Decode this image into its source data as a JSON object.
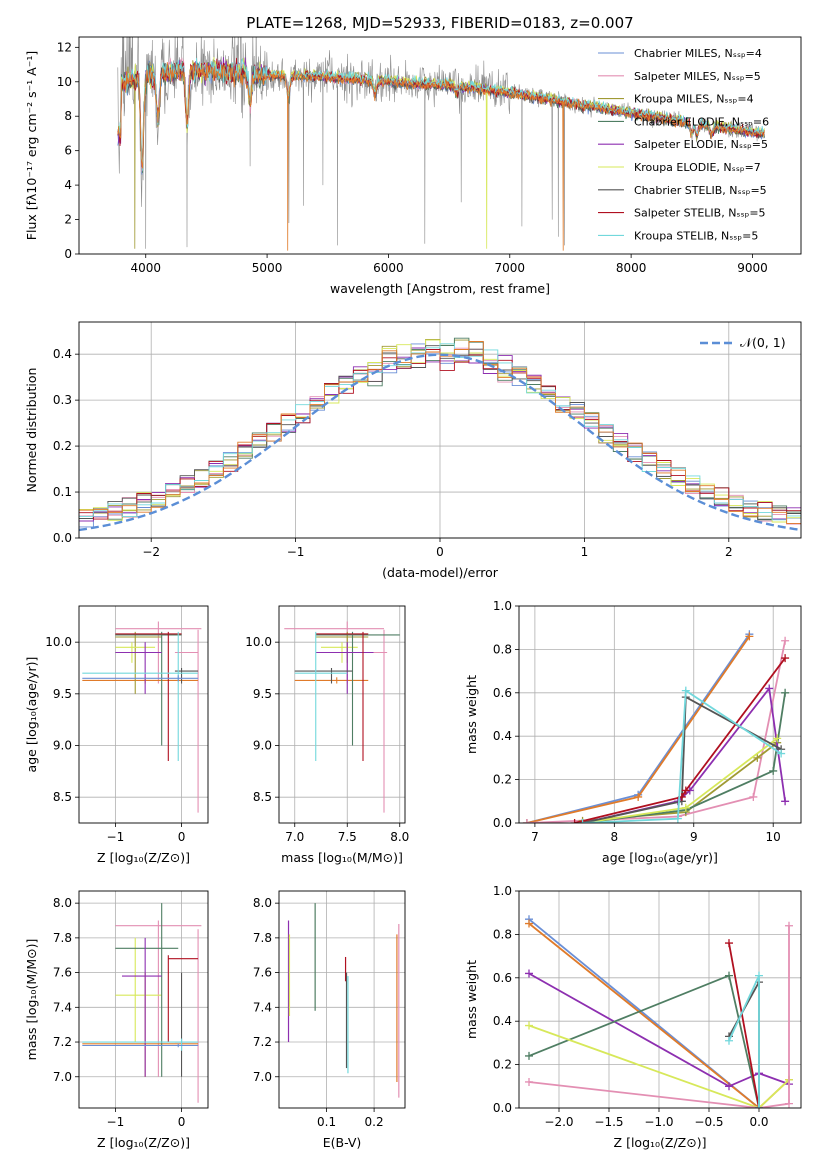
{
  "colors": {
    "c_miles": "#6a8fd6",
    "s_miles": "#e38fb3",
    "k_miles": "#a09a34",
    "c_elodie": "#4f7e63",
    "s_elodie": "#8d2fb0",
    "k_elodie": "#d7e85a",
    "c_stelib": "#555555",
    "s_stelib": "#b01020",
    "k_stelib": "#72d8dc",
    "orange": "#e07b2a",
    "data_gray": "#8c8c8c",
    "normal_line": "#5b8ed6"
  },
  "chart_data": [
    {
      "id": "spectrum",
      "type": "line",
      "title": "PLATE=1268, MJD=52933, FIBERID=0183, z=0.007",
      "xlabel": "wavelength [Angstrom, rest frame]",
      "ylabel": "Flux [fλ10⁻¹⁷ erg cm⁻² s⁻¹ A⁻¹]",
      "xlim": [
        3450,
        9400
      ],
      "ylim": [
        0,
        12.6
      ],
      "xticks": [
        4000,
        5000,
        6000,
        7000,
        8000,
        9000
      ],
      "yticks": [
        0,
        2,
        4,
        6,
        8,
        10,
        12
      ],
      "grid": false,
      "legend_position": "top-right",
      "legend": [
        {
          "label": "Chabrier MILES, Nₛₛₚ=4",
          "color_key": "c_miles"
        },
        {
          "label": "Salpeter MILES, Nₛₛₚ=5",
          "color_key": "s_miles"
        },
        {
          "label": "Kroupa MILES, Nₛₛₚ=4",
          "color_key": "k_miles"
        },
        {
          "label": "Chabrier ELODIE, Nₛₛₚ=6",
          "color_key": "c_elodie"
        },
        {
          "label": "Salpeter ELODIE, Nₛₛₚ=5",
          "color_key": "s_elodie"
        },
        {
          "label": "Kroupa ELODIE, Nₛₛₚ=7",
          "color_key": "k_elodie"
        },
        {
          "label": "Chabrier STELIB, Nₛₛₚ=5",
          "color_key": "c_stelib"
        },
        {
          "label": "Salpeter STELIB, Nₛₛₚ=5",
          "color_key": "s_stelib"
        },
        {
          "label": "Kroupa STELIB, Nₛₛₚ=5",
          "color_key": "k_stelib"
        }
      ],
      "continuum": [
        [
          3800,
          10.0
        ],
        [
          4000,
          10.3
        ],
        [
          4200,
          10.6
        ],
        [
          4500,
          10.7
        ],
        [
          5000,
          10.4
        ],
        [
          5500,
          10.3
        ],
        [
          6000,
          10.0
        ],
        [
          6500,
          9.8
        ],
        [
          7000,
          9.4
        ],
        [
          7500,
          8.8
        ],
        [
          8000,
          8.2
        ],
        [
          8500,
          7.6
        ],
        [
          9000,
          7.1
        ],
        [
          9100,
          7.0
        ]
      ],
      "absorption_dips": [
        [
          3970,
          4.5
        ],
        [
          4100,
          7.5
        ],
        [
          4340,
          7.0
        ],
        [
          4860,
          8.5
        ],
        [
          5175,
          9.0
        ],
        [
          5890,
          9.2
        ],
        [
          6563,
          9.3
        ],
        [
          7600,
          8.5
        ],
        [
          8500,
          7.0
        ],
        [
          8542,
          6.8
        ],
        [
          8662,
          6.9
        ]
      ],
      "model_glitches": [
        {
          "x": 5170,
          "y": 0.2,
          "color_key": "orange"
        },
        {
          "x": 7440,
          "y": 0.2,
          "color_key": "orange"
        },
        {
          "x": 6810,
          "y": 0.3,
          "color_key": "k_elodie"
        },
        {
          "x": 3910,
          "y": 0.3,
          "color_key": "k_miles"
        }
      ],
      "data_spikes": [
        [
          3770,
          1.3
        ],
        [
          4000,
          0.3
        ],
        [
          4340,
          0.4
        ],
        [
          4860,
          5.1
        ],
        [
          5180,
          1.8
        ],
        [
          5300,
          2.8
        ],
        [
          5460,
          4.0
        ],
        [
          5580,
          0.5
        ],
        [
          6300,
          0.6
        ],
        [
          6600,
          3.0
        ],
        [
          7100,
          1.6
        ],
        [
          7350,
          2.0
        ],
        [
          7400,
          1.0
        ],
        [
          7450,
          0.5
        ]
      ]
    },
    {
      "id": "residuals",
      "type": "histogram",
      "xlabel": "(data-model)/error",
      "ylabel": "Normed distribution",
      "xlim": [
        -2.5,
        2.5
      ],
      "ylim": [
        0,
        0.47
      ],
      "xticks": [
        -2,
        -1,
        0,
        1,
        2
      ],
      "yticks": [
        0.0,
        0.1,
        0.2,
        0.3,
        0.4
      ],
      "grid": true,
      "legend_position": "top-right",
      "normal_curve": {
        "label": "𝒩(0, 1)",
        "mean": 0,
        "sigma": 1
      },
      "bin_width": 0.1
    },
    {
      "id": "age_vs_Z",
      "type": "error-cross",
      "xlabel": "Z [log₁₀(Z/Z⊙)]",
      "ylabel": "age  [log₁₀(age/yr)]",
      "xlim": [
        -1.55,
        0.4
      ],
      "ylim": [
        8.25,
        10.35
      ],
      "xticks": [
        -1,
        0
      ],
      "yticks": [
        8.5,
        9.0,
        9.5,
        10.0
      ],
      "grid": true,
      "crosses": [
        {
          "x": -0.35,
          "y": 10.13,
          "x0": -1.0,
          "x1": 0.3,
          "y0": 9.6,
          "y1": 10.2,
          "color_key": "s_miles"
        },
        {
          "x": 0.25,
          "y": 9.9,
          "x0": -0.1,
          "x1": 0.25,
          "y0": 8.35,
          "y1": 10.12,
          "color_key": "s_miles"
        },
        {
          "x": -0.55,
          "y": 9.63,
          "x0": -1.5,
          "x1": 0.25,
          "y0": 9.6,
          "y1": 9.66,
          "color_key": "orange"
        },
        {
          "x": -0.7,
          "y": 10.05,
          "x0": -1.0,
          "x1": -0.3,
          "y0": 9.5,
          "y1": 10.1,
          "color_key": "k_miles"
        },
        {
          "x": -0.75,
          "y": 9.95,
          "x0": -1.0,
          "x1": -0.4,
          "y0": 9.8,
          "y1": 10.0,
          "color_key": "k_elodie"
        },
        {
          "x": -0.3,
          "y": 10.07,
          "x0": -1.0,
          "x1": 0.0,
          "y0": 9.0,
          "y1": 10.1,
          "color_key": "c_elodie"
        },
        {
          "x": -0.55,
          "y": 9.9,
          "x0": -1.0,
          "x1": -0.3,
          "y0": 9.5,
          "y1": 10.0,
          "color_key": "s_elodie"
        },
        {
          "x": -0.2,
          "y": 10.08,
          "x0": -1.0,
          "x1": 0.0,
          "y0": 8.85,
          "y1": 10.1,
          "color_key": "s_stelib"
        },
        {
          "x": 0.0,
          "y": 9.72,
          "x0": -0.1,
          "x1": 0.25,
          "y0": 9.6,
          "y1": 9.75,
          "color_key": "c_stelib"
        },
        {
          "x": -0.05,
          "y": 9.7,
          "x0": -1.5,
          "x1": 0.25,
          "y0": 8.85,
          "y1": 10.1,
          "color_key": "k_stelib"
        },
        {
          "x": -0.05,
          "y": 9.65,
          "x0": -1.5,
          "x1": 0.25,
          "y0": 9.62,
          "y1": 9.68,
          "color_key": "c_miles"
        }
      ]
    },
    {
      "id": "age_vs_mass",
      "type": "error-cross",
      "xlabel": "mass [log₁₀(M/M⊙)]",
      "ylabel": "",
      "xlim": [
        6.85,
        8.05
      ],
      "ylim": [
        8.25,
        10.35
      ],
      "xticks": [
        7.0,
        7.5,
        8.0
      ],
      "yticks": [
        8.5,
        9.0,
        9.5,
        10.0
      ],
      "grid": true,
      "crosses": [
        {
          "x": 7.5,
          "y": 10.13,
          "x0": 6.9,
          "x1": 7.85,
          "y0": 9.6,
          "y1": 10.2,
          "color_key": "s_miles"
        },
        {
          "x": 7.85,
          "y": 9.9,
          "x0": 7.65,
          "x1": 7.88,
          "y0": 8.35,
          "y1": 10.12,
          "color_key": "s_miles"
        },
        {
          "x": 7.4,
          "y": 9.63,
          "x0": 7.0,
          "x1": 7.7,
          "y0": 9.6,
          "y1": 9.66,
          "color_key": "orange"
        },
        {
          "x": 7.5,
          "y": 10.05,
          "x0": 7.2,
          "x1": 7.7,
          "y0": 9.8,
          "y1": 10.1,
          "color_key": "k_miles"
        },
        {
          "x": 7.45,
          "y": 9.95,
          "x0": 7.25,
          "x1": 7.6,
          "y0": 9.8,
          "y1": 10.0,
          "color_key": "k_elodie"
        },
        {
          "x": 7.55,
          "y": 10.07,
          "x0": 7.2,
          "x1": 8.0,
          "y0": 9.0,
          "y1": 10.1,
          "color_key": "c_elodie"
        },
        {
          "x": 7.5,
          "y": 9.9,
          "x0": 7.2,
          "x1": 7.75,
          "y0": 9.5,
          "y1": 10.0,
          "color_key": "s_elodie"
        },
        {
          "x": 7.65,
          "y": 10.08,
          "x0": 7.2,
          "x1": 7.7,
          "y0": 8.85,
          "y1": 10.1,
          "color_key": "s_stelib"
        },
        {
          "x": 7.35,
          "y": 9.72,
          "x0": 7.0,
          "x1": 7.55,
          "y0": 9.6,
          "y1": 9.75,
          "color_key": "c_stelib"
        },
        {
          "x": 7.2,
          "y": 9.7,
          "x0": 7.0,
          "x1": 7.5,
          "y0": 8.85,
          "y1": 10.1,
          "color_key": "k_stelib"
        }
      ]
    },
    {
      "id": "weight_vs_age",
      "type": "line",
      "xlabel": "age  [log₁₀(age/yr)]",
      "ylabel": "mass weight",
      "xlim": [
        6.8,
        10.35
      ],
      "ylim": [
        0,
        1.0
      ],
      "xticks": [
        7,
        8,
        9,
        10
      ],
      "yticks": [
        0.0,
        0.2,
        0.4,
        0.6,
        0.8,
        1.0
      ],
      "grid": true,
      "series": [
        {
          "color_key": "c_miles",
          "x": [
            6.9,
            8.3,
            9.7
          ],
          "y": [
            0.0,
            0.13,
            0.87
          ]
        },
        {
          "color_key": "orange",
          "x": [
            6.9,
            8.3,
            9.7
          ],
          "y": [
            0.0,
            0.12,
            0.86
          ]
        },
        {
          "color_key": "s_miles",
          "x": [
            6.9,
            8.8,
            9.75,
            10.15
          ],
          "y": [
            0.0,
            0.03,
            0.12,
            0.84
          ]
        },
        {
          "color_key": "k_miles",
          "x": [
            7.6,
            8.9,
            9.8,
            10.05
          ],
          "y": [
            0.01,
            0.05,
            0.3,
            0.37
          ]
        },
        {
          "color_key": "c_elodie",
          "x": [
            7.6,
            8.9,
            10.0,
            10.15
          ],
          "y": [
            0.0,
            0.06,
            0.24,
            0.6
          ]
        },
        {
          "color_key": "s_elodie",
          "x": [
            7.6,
            8.8,
            8.95,
            9.95,
            10.15
          ],
          "y": [
            0.0,
            0.1,
            0.15,
            0.62,
            0.1
          ]
        },
        {
          "color_key": "k_elodie",
          "x": [
            7.6,
            8.9,
            10.05
          ],
          "y": [
            0.0,
            0.07,
            0.39
          ]
        },
        {
          "color_key": "c_stelib",
          "x": [
            7.6,
            8.85,
            8.9,
            10.1
          ],
          "y": [
            0.0,
            0.1,
            0.58,
            0.34
          ]
        },
        {
          "color_key": "s_stelib",
          "x": [
            7.5,
            8.85,
            8.9,
            10.15
          ],
          "y": [
            0.0,
            0.12,
            0.15,
            0.76
          ]
        },
        {
          "color_key": "k_stelib",
          "x": [
            7.6,
            8.8,
            8.9,
            10.1
          ],
          "y": [
            0.0,
            0.02,
            0.61,
            0.32
          ]
        }
      ]
    },
    {
      "id": "mass_vs_Z",
      "type": "error-cross",
      "xlabel": "Z [log₁₀(Z/Z⊙)]",
      "ylabel": "mass [log₁₀(M/M⊙)]",
      "xlim": [
        -1.55,
        0.4
      ],
      "ylim": [
        6.82,
        8.07
      ],
      "xticks": [
        -1,
        0
      ],
      "yticks": [
        7.0,
        7.2,
        7.4,
        7.6,
        7.8,
        8.0
      ],
      "grid": true,
      "crosses": [
        {
          "x": -0.35,
          "y": 7.87,
          "x0": -1.0,
          "x1": 0.3,
          "y0": 7.0,
          "y1": 7.9,
          "color_key": "s_miles"
        },
        {
          "x": 0.25,
          "y": 7.2,
          "x0": -0.1,
          "x1": 0.25,
          "y0": 6.85,
          "y1": 7.85,
          "color_key": "s_miles"
        },
        {
          "x": -0.55,
          "y": 7.19,
          "x0": -1.5,
          "x1": 0.25,
          "y0": 7.0,
          "y1": 7.6,
          "color_key": "orange"
        },
        {
          "x": -0.7,
          "y": 7.47,
          "x0": -1.0,
          "x1": -0.3,
          "y0": 7.2,
          "y1": 7.8,
          "color_key": "k_elodie"
        },
        {
          "x": -0.3,
          "y": 7.74,
          "x0": -1.0,
          "x1": -0.05,
          "y0": 7.0,
          "y1": 8.0,
          "color_key": "c_elodie"
        },
        {
          "x": -0.55,
          "y": 7.58,
          "x0": -0.9,
          "x1": -0.3,
          "y0": 7.0,
          "y1": 7.8,
          "color_key": "s_elodie"
        },
        {
          "x": -0.2,
          "y": 7.68,
          "x0": -0.2,
          "x1": 0.25,
          "y0": 7.2,
          "y1": 7.7,
          "color_key": "s_stelib"
        },
        {
          "x": 0.0,
          "y": 7.18,
          "x0": -0.2,
          "x1": 0.25,
          "y0": 7.0,
          "y1": 7.6,
          "color_key": "c_stelib"
        },
        {
          "x": 0.0,
          "y": 7.2,
          "x0": -1.5,
          "x1": 0.25,
          "y0": 7.15,
          "y1": 7.22,
          "color_key": "k_stelib"
        },
        {
          "x": -0.05,
          "y": 7.18,
          "x0": -1.5,
          "x1": 0.25,
          "y0": 7.17,
          "y1": 7.19,
          "color_key": "c_miles"
        }
      ]
    },
    {
      "id": "mass_vs_ebv",
      "type": "error-bar",
      "xlabel": "E(B-V)",
      "ylabel": "",
      "xlim": [
        0.0,
        0.265
      ],
      "ylim": [
        6.82,
        8.07
      ],
      "xticks": [
        0.1,
        0.2
      ],
      "yticks": [
        7.0,
        7.2,
        7.4,
        7.6,
        7.8,
        8.0
      ],
      "grid": true,
      "bars": [
        {
          "x": 0.02,
          "y0": 7.2,
          "y1": 7.9,
          "color_key": "s_elodie"
        },
        {
          "x": 0.022,
          "y0": 7.35,
          "y1": 7.82,
          "color_key": "k_elodie"
        },
        {
          "x": 0.076,
          "y0": 7.38,
          "y1": 8.0,
          "color_key": "c_elodie"
        },
        {
          "x": 0.14,
          "y0": 7.55,
          "y1": 7.69,
          "color_key": "s_stelib"
        },
        {
          "x": 0.142,
          "y0": 7.05,
          "y1": 7.6,
          "color_key": "c_stelib"
        },
        {
          "x": 0.145,
          "y0": 7.02,
          "y1": 7.58,
          "color_key": "k_stelib"
        },
        {
          "x": 0.248,
          "y0": 6.97,
          "y1": 7.82,
          "color_key": "orange"
        },
        {
          "x": 0.252,
          "y0": 6.88,
          "y1": 7.88,
          "color_key": "s_miles"
        }
      ]
    },
    {
      "id": "weight_vs_Z",
      "type": "line",
      "xlabel": "Z [log₁₀(Z/Z⊙)]",
      "ylabel": "mass weight",
      "xlim": [
        -2.4,
        0.42
      ],
      "ylim": [
        0,
        1.0
      ],
      "xticks": [
        -2.0,
        -1.5,
        -1.0,
        -0.5,
        0.0
      ],
      "yticks": [
        0.0,
        0.2,
        0.4,
        0.6,
        0.8,
        1.0
      ],
      "grid": true,
      "series": [
        {
          "color_key": "c_miles",
          "x": [
            -2.3,
            0.0
          ],
          "y": [
            0.87,
            0.0
          ]
        },
        {
          "color_key": "orange",
          "x": [
            -2.3,
            0.0,
            0.3
          ],
          "y": [
            0.85,
            0.0,
            0.13
          ]
        },
        {
          "color_key": "s_elodie",
          "x": [
            -2.3,
            -0.3,
            0.0,
            0.3
          ],
          "y": [
            0.62,
            0.1,
            0.16,
            0.11
          ]
        },
        {
          "color_key": "c_elodie",
          "x": [
            -2.3,
            -0.3,
            0.0
          ],
          "y": [
            0.24,
            0.61,
            0.0
          ]
        },
        {
          "color_key": "k_elodie",
          "x": [
            -2.3,
            0.0,
            0.3
          ],
          "y": [
            0.38,
            0.0,
            0.13
          ]
        },
        {
          "color_key": "s_miles",
          "x": [
            -2.3,
            0.0,
            0.3,
            0.3
          ],
          "y": [
            0.12,
            0.0,
            0.02,
            0.84
          ]
        },
        {
          "color_key": "s_stelib",
          "x": [
            -0.3,
            0.0
          ],
          "y": [
            0.76,
            0.0
          ]
        },
        {
          "color_key": "c_stelib",
          "x": [
            -0.3,
            0.0,
            0.0
          ],
          "y": [
            0.33,
            0.58,
            0.0
          ]
        },
        {
          "color_key": "k_stelib",
          "x": [
            -0.3,
            0.0,
            0.0
          ],
          "y": [
            0.31,
            0.61,
            0.0
          ]
        }
      ]
    }
  ]
}
